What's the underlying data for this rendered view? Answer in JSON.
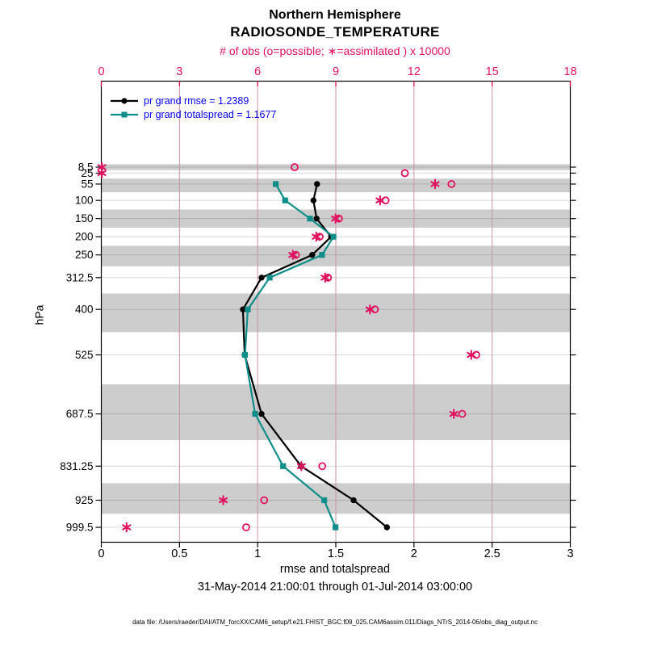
{
  "header": {
    "title_line1": "Northern Hemisphere",
    "title_line2": "RADIOSONDE_TEMPERATURE"
  },
  "chart_data": {
    "type": "line",
    "profile_orientation": "vertical-pressure-profile",
    "top_axis": {
      "label": "# of obs (o=possible; ∗=assimilated ) x 10000",
      "ticks": [
        0,
        3,
        6,
        9,
        12,
        15,
        18
      ],
      "range": [
        0,
        18
      ],
      "color": "#e0115f"
    },
    "bottom_axis": {
      "label": "rmse and totalspread",
      "ticks": [
        "0",
        "0.5",
        "1",
        "1.5",
        "2",
        "2.5",
        "3"
      ],
      "range": [
        0,
        3
      ]
    },
    "left_axis": {
      "label": "hPa",
      "levels": [
        8.5,
        25,
        55,
        100,
        150,
        200,
        250,
        312.5,
        400,
        525,
        687.5,
        831.25,
        925,
        999.5
      ]
    },
    "shaded_levels": [
      8.5,
      55,
      150,
      250,
      400,
      687.5,
      925
    ],
    "grid": true,
    "legend_position": "top-left",
    "legend_text_color": "#0000ee",
    "series": [
      {
        "id": "rmse",
        "name": "pr grand rmse = 1.2389",
        "color": "#000000",
        "marker": "circle",
        "points": [
          [
            55,
            1.38
          ],
          [
            100,
            1.357
          ],
          [
            150,
            1.377
          ],
          [
            200,
            1.47
          ],
          [
            250,
            1.349
          ],
          [
            312.5,
            1.025
          ],
          [
            400,
            0.906
          ],
          [
            525,
            0.917
          ],
          [
            687.5,
            1.025
          ],
          [
            831.25,
            1.278
          ],
          [
            925,
            1.614
          ],
          [
            999.5,
            1.827
          ]
        ]
      },
      {
        "id": "totalspread",
        "name": "pr grand totalspread = 1.1677",
        "color": "#0f8e8a",
        "marker": "square",
        "points": [
          [
            55,
            1.116
          ],
          [
            100,
            1.176
          ],
          [
            150,
            1.335
          ],
          [
            200,
            1.485
          ],
          [
            250,
            1.412
          ],
          [
            312.5,
            1.077
          ],
          [
            400,
            0.937
          ],
          [
            525,
            0.919
          ],
          [
            687.5,
            0.984
          ],
          [
            831.25,
            1.163
          ],
          [
            925,
            1.426
          ],
          [
            999.5,
            1.498
          ]
        ]
      }
    ],
    "obs_counts_x10000": {
      "color": "#e0115f",
      "possible_marker": "o",
      "assimilated_marker": "∗",
      "possible": [
        [
          8.5,
          7.42
        ],
        [
          25,
          11.65
        ],
        [
          55,
          13.44
        ],
        [
          100,
          10.91
        ],
        [
          150,
          9.12
        ],
        [
          200,
          8.38
        ],
        [
          250,
          7.47
        ],
        [
          312.5,
          8.7
        ],
        [
          400,
          10.5
        ],
        [
          525,
          14.39
        ],
        [
          687.5,
          13.85
        ],
        [
          831.25,
          8.48
        ],
        [
          925,
          6.25
        ],
        [
          999.5,
          5.56
        ]
      ],
      "assimilated": [
        [
          8.5,
          0.02
        ],
        [
          25,
          0.02
        ],
        [
          55,
          12.81
        ],
        [
          100,
          10.7
        ],
        [
          150,
          8.99
        ],
        [
          200,
          8.25
        ],
        [
          250,
          7.35
        ],
        [
          312.5,
          8.59
        ],
        [
          400,
          10.31
        ],
        [
          525,
          14.2
        ],
        [
          687.5,
          13.53
        ],
        [
          831.25,
          7.68
        ],
        [
          925,
          4.68
        ],
        [
          999.5,
          0.97
        ]
      ]
    }
  },
  "footer": {
    "date_range": "31-May-2014 21:00:01 through 01-Jul-2014 03:00:00",
    "data_file": "data file: /Users/raeder/DAI/ATM_forcXX/CAM6_setup/f.e21.FHIST_BGC.f09_025.CAM6assim.011/Diags_NTrS_2014-06/obs_diag_output.nc"
  }
}
